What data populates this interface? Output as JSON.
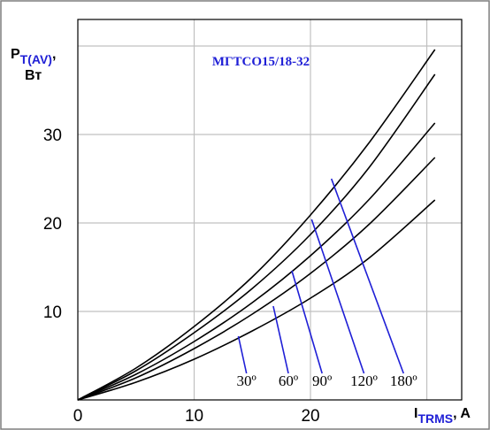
{
  "chart_data": {
    "type": "line",
    "title": "МГТСО15/18-32",
    "xlabel": {
      "main": "I",
      "sub": "TRMS",
      "suffix": ", A"
    },
    "ylabel": {
      "main": "P",
      "sub": "T(AV)",
      "suffix": ",",
      "unit": "Вт"
    },
    "xlim": [
      0,
      33
    ],
    "ylim": [
      0,
      43
    ],
    "x_ticks": [
      0,
      10,
      20
    ],
    "y_ticks": [
      10,
      20,
      30
    ],
    "grid": true,
    "series": [
      {
        "name": "30º",
        "x": [
          0,
          5,
          10,
          15,
          20,
          25,
          30.7
        ],
        "y": [
          0,
          2,
          4.6,
          7.8,
          11.5,
          16.0,
          22.6
        ]
      },
      {
        "name": "60º",
        "x": [
          0,
          5,
          10,
          15,
          20,
          25,
          30.7
        ],
        "y": [
          0,
          2.5,
          5.8,
          9.7,
          14.3,
          19.8,
          27.4
        ]
      },
      {
        "name": "90º",
        "x": [
          0,
          5,
          10,
          15,
          20,
          25,
          30.7
        ],
        "y": [
          0,
          2.9,
          6.6,
          11.0,
          16.3,
          22.6,
          31.3
        ]
      },
      {
        "name": "120º",
        "x": [
          0,
          5,
          10,
          15,
          20,
          25,
          30.7
        ],
        "y": [
          0,
          3.3,
          7.6,
          12.6,
          18.7,
          26.2,
          36.8
        ]
      },
      {
        "name": "180º",
        "x": [
          0,
          5,
          10,
          15,
          20,
          25,
          30.7
        ],
        "y": [
          0,
          3.6,
          8.3,
          13.9,
          20.9,
          29.0,
          39.6
        ]
      }
    ],
    "angle_markers": [
      {
        "label": "30º",
        "from": [
          13.8,
          7.2
        ],
        "to": [
          14.5,
          3.0
        ]
      },
      {
        "label": "60º",
        "from": [
          16.8,
          10.6
        ],
        "to": [
          18.1,
          3.0
        ]
      },
      {
        "label": "90º",
        "from": [
          18.4,
          14.6
        ],
        "to": [
          21.0,
          3.0
        ]
      },
      {
        "label": "120º",
        "from": [
          20.1,
          20.4
        ],
        "to": [
          24.6,
          3.0
        ]
      },
      {
        "label": "180º",
        "from": [
          21.8,
          25.0
        ],
        "to": [
          28.0,
          3.0
        ]
      }
    ],
    "colors": {
      "border": "#7f7f7f",
      "curves": "#000000",
      "grid": "#c0c0c0",
      "angle_lines": "#1f1fd6",
      "title": "#1f1fd6"
    }
  }
}
